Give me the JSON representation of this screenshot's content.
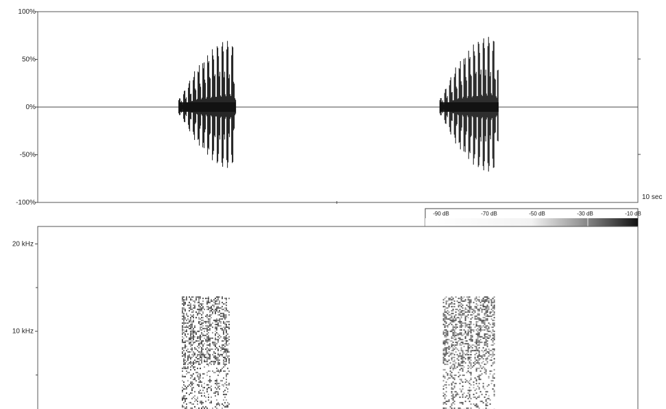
{
  "chart_data": [
    {
      "type": "line",
      "panel": "waveform",
      "ylim": [
        -100,
        100
      ],
      "y_ticks": [
        {
          "value": 100,
          "label": "100%"
        },
        {
          "value": 50,
          "label": "50%"
        },
        {
          "value": 0,
          "label": "0%"
        },
        {
          "value": -50,
          "label": "-50%"
        },
        {
          "value": -100,
          "label": "-100%"
        }
      ],
      "x_end_label": "10 sec",
      "xlim": [
        0,
        10
      ],
      "grid": false,
      "series": [
        {
          "envelope": [
            {
              "x": 2.35,
              "y": 8
            },
            {
              "x": 2.45,
              "y": 18
            },
            {
              "x": 2.55,
              "y": 30
            },
            {
              "x": 2.65,
              "y": 42
            },
            {
              "x": 2.75,
              "y": 50
            },
            {
              "x": 2.85,
              "y": 57
            },
            {
              "x": 2.95,
              "y": 63
            },
            {
              "x": 3.05,
              "y": 68
            },
            {
              "x": 3.15,
              "y": 70
            },
            {
              "x": 3.25,
              "y": 66
            },
            {
              "x": 3.3,
              "y": 40
            }
          ]
        },
        {
          "envelope": [
            {
              "x": 6.7,
              "y": 8
            },
            {
              "x": 6.8,
              "y": 20
            },
            {
              "x": 6.9,
              "y": 34
            },
            {
              "x": 7.0,
              "y": 46
            },
            {
              "x": 7.1,
              "y": 55
            },
            {
              "x": 7.2,
              "y": 62
            },
            {
              "x": 7.3,
              "y": 68
            },
            {
              "x": 7.4,
              "y": 72
            },
            {
              "x": 7.5,
              "y": 74
            },
            {
              "x": 7.6,
              "y": 72
            },
            {
              "x": 7.68,
              "y": 40
            }
          ]
        }
      ]
    },
    {
      "type": "heatmap",
      "panel": "spectrogram",
      "y_ticks": [
        {
          "value": 20,
          "label": "20 kHz"
        },
        {
          "value": 10,
          "label": "10 kHz"
        }
      ],
      "ylim_khz": [
        0,
        22
      ],
      "xlim": [
        0,
        10
      ],
      "color_scale": {
        "labels": [
          "-90 dB",
          "-70 dB",
          "-50 dB",
          "-30 dB",
          "-10 dB"
        ],
        "range_db": [
          -100,
          0
        ]
      },
      "bursts": [
        {
          "start_sec": 2.4,
          "end_sec": 3.2,
          "max_khz": 14
        },
        {
          "start_sec": 6.75,
          "end_sec": 7.6,
          "max_khz": 14
        }
      ]
    }
  ]
}
